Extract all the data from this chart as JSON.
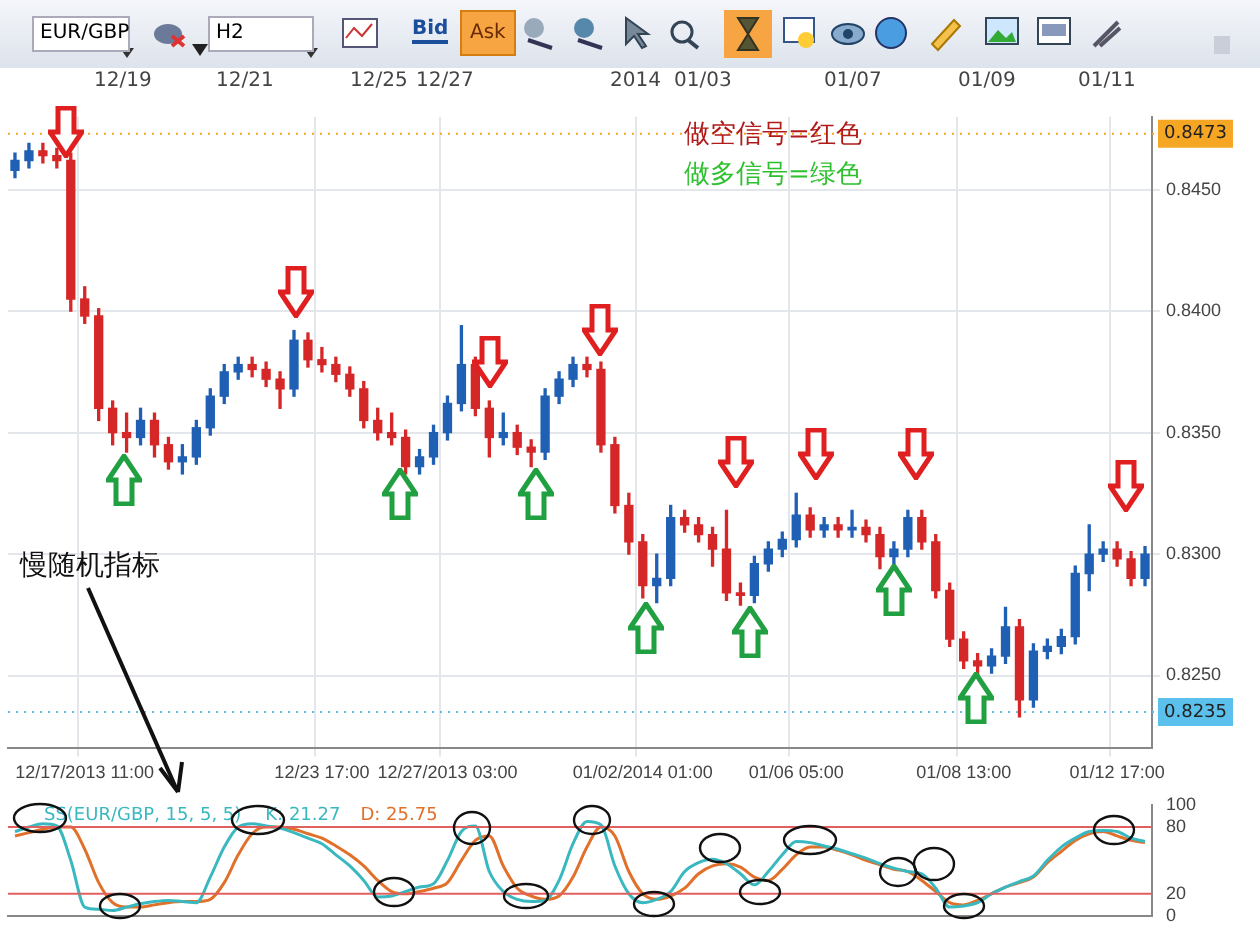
{
  "chart_data": [
    {
      "type": "candlestick",
      "categories": [
        null,
        null,
        null,
        null,
        null,
        "12/17/2013 11:00",
        null,
        null,
        null,
        null,
        null,
        null,
        null,
        null,
        null,
        null,
        null,
        null,
        null,
        null,
        null,
        null,
        "12/23 17:00",
        null,
        null,
        null,
        null,
        null,
        null,
        null,
        null,
        "12/27/2013 03:00",
        null,
        null,
        null,
        null,
        null,
        null,
        null,
        null,
        null,
        null,
        null,
        null,
        null,
        "01/02/2014 01:00",
        null,
        null,
        null,
        null,
        null,
        null,
        null,
        null,
        null,
        null,
        "01/06 05:00",
        null,
        null,
        null,
        null,
        null,
        null,
        null,
        null,
        null,
        null,
        null,
        "01/08 13:00",
        null,
        null,
        null,
        null,
        null,
        null,
        null,
        null,
        null,
        null,
        "01/12 17:00",
        null,
        null
      ],
      "ohlc": [
        [
          0.8458,
          0.8465,
          0.8455,
          0.8462
        ],
        [
          0.8462,
          0.8469,
          0.8459,
          0.8466
        ],
        [
          0.8466,
          0.8469,
          0.8461,
          0.8464
        ],
        [
          0.8464,
          0.8467,
          0.8459,
          0.8462
        ],
        [
          0.8462,
          0.8465,
          0.84,
          0.8405
        ],
        [
          0.8405,
          0.841,
          0.8395,
          0.8398
        ],
        [
          0.8398,
          0.8401,
          0.8355,
          0.836
        ],
        [
          0.836,
          0.8363,
          0.8345,
          0.835
        ],
        [
          0.835,
          0.8358,
          0.8342,
          0.8348
        ],
        [
          0.8348,
          0.836,
          0.8345,
          0.8355
        ],
        [
          0.8355,
          0.8358,
          0.834,
          0.8345
        ],
        [
          0.8345,
          0.8348,
          0.8335,
          0.8338
        ],
        [
          0.8338,
          0.8345,
          0.8333,
          0.834
        ],
        [
          0.834,
          0.8355,
          0.8337,
          0.8352
        ],
        [
          0.8352,
          0.8368,
          0.8349,
          0.8365
        ],
        [
          0.8365,
          0.8378,
          0.8362,
          0.8375
        ],
        [
          0.8375,
          0.8381,
          0.8372,
          0.8378
        ],
        [
          0.8378,
          0.8381,
          0.8373,
          0.8376
        ],
        [
          0.8376,
          0.8379,
          0.8369,
          0.8372
        ],
        [
          0.8372,
          0.8375,
          0.836,
          0.8368
        ],
        [
          0.8368,
          0.8392,
          0.8365,
          0.8388
        ],
        [
          0.8388,
          0.8391,
          0.8377,
          0.838
        ],
        [
          0.838,
          0.8385,
          0.8375,
          0.8378
        ],
        [
          0.8378,
          0.8381,
          0.8371,
          0.8374
        ],
        [
          0.8374,
          0.8377,
          0.8365,
          0.8368
        ],
        [
          0.8368,
          0.8371,
          0.8352,
          0.8355
        ],
        [
          0.8355,
          0.836,
          0.8347,
          0.835
        ],
        [
          0.835,
          0.8358,
          0.8345,
          0.8348
        ],
        [
          0.8348,
          0.8351,
          0.8333,
          0.8336
        ],
        [
          0.8336,
          0.8343,
          0.8333,
          0.834
        ],
        [
          0.834,
          0.8353,
          0.8337,
          0.835
        ],
        [
          0.835,
          0.8365,
          0.8347,
          0.8362
        ],
        [
          0.8362,
          0.8394,
          0.8359,
          0.8378
        ],
        [
          0.8378,
          0.8381,
          0.8357,
          0.836
        ],
        [
          0.836,
          0.8363,
          0.834,
          0.8348
        ],
        [
          0.8348,
          0.8358,
          0.8345,
          0.835
        ],
        [
          0.835,
          0.8353,
          0.8341,
          0.8344
        ],
        [
          0.8344,
          0.8347,
          0.8336,
          0.8342
        ],
        [
          0.8342,
          0.8368,
          0.8339,
          0.8365
        ],
        [
          0.8365,
          0.8375,
          0.8362,
          0.8372
        ],
        [
          0.8372,
          0.8381,
          0.8369,
          0.8378
        ],
        [
          0.8378,
          0.8381,
          0.8373,
          0.8376
        ],
        [
          0.8376,
          0.8379,
          0.8342,
          0.8345
        ],
        [
          0.8345,
          0.8348,
          0.8317,
          0.832
        ],
        [
          0.832,
          0.8325,
          0.83,
          0.8305
        ],
        [
          0.8305,
          0.8308,
          0.8282,
          0.8287
        ],
        [
          0.8287,
          0.83,
          0.828,
          0.829
        ],
        [
          0.829,
          0.832,
          0.8287,
          0.8315
        ],
        [
          0.8315,
          0.8318,
          0.8309,
          0.8312
        ],
        [
          0.8312,
          0.8315,
          0.8305,
          0.8308
        ],
        [
          0.8308,
          0.8311,
          0.8295,
          0.8302
        ],
        [
          0.8302,
          0.8318,
          0.8281,
          0.8284
        ],
        [
          0.8284,
          0.8288,
          0.8279,
          0.8283
        ],
        [
          0.8283,
          0.8299,
          0.828,
          0.8296
        ],
        [
          0.8296,
          0.8305,
          0.8293,
          0.8302
        ],
        [
          0.8302,
          0.8309,
          0.8299,
          0.8306
        ],
        [
          0.8306,
          0.8325,
          0.8303,
          0.8316
        ],
        [
          0.8316,
          0.8319,
          0.8307,
          0.831
        ],
        [
          0.831,
          0.8315,
          0.8307,
          0.8312
        ],
        [
          0.8312,
          0.8315,
          0.8307,
          0.831
        ],
        [
          0.831,
          0.8318,
          0.8307,
          0.8311
        ],
        [
          0.8311,
          0.8314,
          0.8305,
          0.8308
        ],
        [
          0.8308,
          0.8311,
          0.8294,
          0.8299
        ],
        [
          0.8299,
          0.8305,
          0.8296,
          0.8302
        ],
        [
          0.8302,
          0.8318,
          0.8299,
          0.8315
        ],
        [
          0.8315,
          0.8318,
          0.8302,
          0.8305
        ],
        [
          0.8305,
          0.8308,
          0.8282,
          0.8285
        ],
        [
          0.8285,
          0.8288,
          0.8262,
          0.8265
        ],
        [
          0.8265,
          0.8268,
          0.8253,
          0.8256
        ],
        [
          0.8256,
          0.8259,
          0.825,
          0.8254
        ],
        [
          0.8254,
          0.8261,
          0.8251,
          0.8258
        ],
        [
          0.8258,
          0.8278,
          0.8255,
          0.827
        ],
        [
          0.827,
          0.8273,
          0.8233,
          0.824
        ],
        [
          0.824,
          0.8263,
          0.8237,
          0.826
        ],
        [
          0.826,
          0.8265,
          0.8257,
          0.8262
        ],
        [
          0.8262,
          0.8269,
          0.8259,
          0.8266
        ],
        [
          0.8266,
          0.8295,
          0.8263,
          0.8292
        ],
        [
          0.8292,
          0.8312,
          0.8285,
          0.83
        ],
        [
          0.83,
          0.8305,
          0.8297,
          0.8302
        ],
        [
          0.8302,
          0.8305,
          0.8295,
          0.8298
        ],
        [
          0.8298,
          0.8301,
          0.8287,
          0.829
        ],
        [
          0.829,
          0.8303,
          0.8287,
          0.83
        ]
      ],
      "colors": [
        "#1f5fb4",
        "#1f5fb4",
        "#d62728",
        "#d62728",
        "#d62728",
        "#d62728",
        "#d62728",
        "#d62728",
        "#d62728",
        "#1f5fb4",
        "#d62728",
        "#d62728",
        "#1f5fb4",
        "#1f5fb4",
        "#1f5fb4",
        "#1f5fb4",
        "#1f5fb4",
        "#d62728",
        "#d62728",
        "#d62728",
        "#1f5fb4",
        "#d62728",
        "#d62728",
        "#d62728",
        "#d62728",
        "#d62728",
        "#d62728",
        "#d62728",
        "#d62728",
        "#1f5fb4",
        "#1f5fb4",
        "#1f5fb4",
        "#1f5fb4",
        "#d62728",
        "#d62728",
        "#1f5fb4",
        "#d62728",
        "#d62728",
        "#1f5fb4",
        "#1f5fb4",
        "#1f5fb4",
        "#d62728",
        "#d62728",
        "#d62728",
        "#d62728",
        "#d62728",
        "#1f5fb4",
        "#1f5fb4",
        "#d62728",
        "#d62728",
        "#d62728",
        "#d62728",
        "#d62728",
        "#1f5fb4",
        "#1f5fb4",
        "#1f5fb4",
        "#1f5fb4",
        "#d62728",
        "#1f5fb4",
        "#d62728",
        "#1f5fb4",
        "#d62728",
        "#d62728",
        "#1f5fb4",
        "#1f5fb4",
        "#d62728",
        "#d62728",
        "#d62728",
        "#d62728",
        "#d62728",
        "#1f5fb4",
        "#1f5fb4",
        "#d62728",
        "#1f5fb4",
        "#1f5fb4",
        "#1f5fb4",
        "#1f5fb4",
        "#1f5fb4",
        "#1f5fb4",
        "#d62728",
        "#d62728",
        "#1f5fb4"
      ],
      "ylim": [
        0.822,
        0.848
      ],
      "yticks": [
        {
          "value": 0.825,
          "label": "0.8250"
        },
        {
          "value": 0.83,
          "label": "0.8300"
        },
        {
          "value": 0.835,
          "label": "0.8350"
        },
        {
          "value": 0.84,
          "label": "0.8400"
        },
        {
          "value": 0.845,
          "label": "0.8450"
        }
      ],
      "grid": true,
      "ref_lines": [
        {
          "axis": "y",
          "value": 0.8473,
          "label": "0.8473",
          "color": "#f5a623",
          "line_style": "dotted"
        },
        {
          "axis": "y",
          "value": 0.8235,
          "label": "0.8235",
          "color": "#5bc0eb",
          "line_style": "dotted"
        }
      ],
      "annotations": [
        "EUR/GBP",
        "H2",
        "Bid",
        "Ask",
        "12/19",
        "12/21",
        "12/25",
        "12/27",
        "2014",
        "01/03",
        "01/07",
        "01/09",
        "01/11",
        "做空信号=红色",
        "做多信号=绿色"
      ]
    },
    {
      "type": "line",
      "title": "SS(EUR/GBP, 15, 5, 5)",
      "categories": [
        null,
        null,
        null,
        null,
        null,
        null,
        null,
        null,
        null,
        null,
        null,
        null,
        null,
        null,
        null,
        null,
        null,
        null,
        null,
        null,
        null,
        null,
        null,
        null,
        null,
        null,
        null,
        null,
        null,
        null,
        null,
        null,
        null,
        null,
        null,
        null,
        null,
        null,
        null,
        null,
        null,
        null,
        null,
        null,
        null,
        null,
        null,
        null,
        null,
        null,
        null,
        null,
        null,
        null,
        null,
        null,
        null,
        null,
        null,
        null,
        null,
        null,
        null,
        null,
        null,
        null,
        null,
        null,
        null,
        null,
        null,
        null,
        null,
        null,
        null,
        null,
        null,
        null,
        null,
        null,
        null,
        null
      ],
      "series": [
        {
          "name": "K: 21.27",
          "color": "#3ab8c0",
          "values": [
            76,
            80,
            83,
            81,
            50,
            8,
            6,
            5,
            8,
            11,
            13,
            14,
            13,
            12,
            35,
            62,
            80,
            83,
            81,
            79,
            75,
            70,
            65,
            55,
            45,
            32,
            17,
            18,
            22,
            26,
            29,
            50,
            76,
            81,
            40,
            22,
            15,
            13,
            14,
            32,
            65,
            85,
            82,
            45,
            20,
            12,
            15,
            22,
            40,
            48,
            51,
            47,
            38,
            28,
            40,
            55,
            67,
            66,
            63,
            60,
            56,
            52,
            47,
            43,
            40,
            38,
            25,
            8,
            9,
            12,
            20,
            26,
            31,
            36,
            50,
            62,
            70,
            76,
            77,
            76,
            70,
            67
          ]
        },
        {
          "name": "D: 25.75",
          "color": "#e0702a",
          "values": [
            72,
            75,
            78,
            80,
            80,
            60,
            30,
            12,
            8,
            8,
            10,
            12,
            13,
            13,
            15,
            30,
            55,
            74,
            80,
            80,
            78,
            74,
            70,
            63,
            55,
            45,
            32,
            22,
            20,
            22,
            25,
            30,
            50,
            68,
            72,
            45,
            25,
            18,
            15,
            18,
            35,
            62,
            80,
            72,
            40,
            20,
            15,
            18,
            25,
            38,
            45,
            47,
            44,
            35,
            32,
            42,
            55,
            62,
            62,
            59,
            55,
            50,
            46,
            42,
            40,
            32,
            22,
            12,
            10,
            14,
            20,
            26,
            30,
            35,
            48,
            58,
            68,
            74,
            76,
            72,
            68,
            66
          ]
        }
      ],
      "ylim": [
        0,
        100
      ],
      "yticks": [
        0,
        20,
        80,
        100
      ],
      "ref_lines": [
        {
          "axis": "y",
          "value": 20,
          "color": "#e06060"
        },
        {
          "axis": "y",
          "value": 80,
          "color": "#e06060"
        }
      ],
      "legend": "top left",
      "annotations": [
        "慢随机指标"
      ],
      "marker": "none",
      "tick_labels": "y"
    }
  ]
}
